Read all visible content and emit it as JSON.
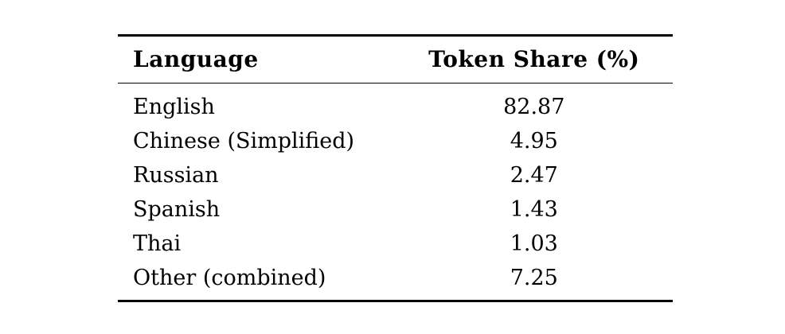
{
  "page": {
    "background_color": "#ffffff",
    "text_color": "#000000",
    "rule_color": "#000000"
  },
  "table": {
    "columns": [
      {
        "label": "Language",
        "align": "left"
      },
      {
        "label": "Token Share (%)",
        "align": "center"
      }
    ],
    "rows": [
      {
        "language": "English",
        "share": "82.87"
      },
      {
        "language": "Chinese (Simplified)",
        "share": "4.95"
      },
      {
        "language": "Russian",
        "share": "2.47"
      },
      {
        "language": "Spanish",
        "share": "1.43"
      },
      {
        "language": "Thai",
        "share": "1.03"
      },
      {
        "language": "Other (combined)",
        "share": "7.25"
      }
    ]
  }
}
